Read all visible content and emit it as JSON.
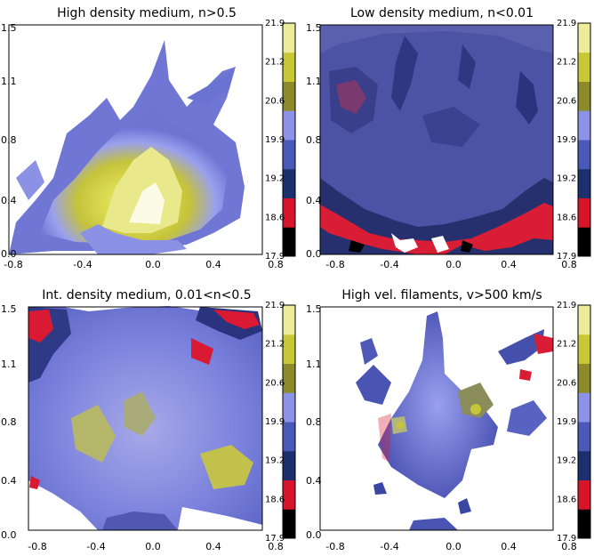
{
  "chart_data": [
    {
      "type": "heatmap",
      "title": "High density medium, n>0.5",
      "xlabel": "",
      "ylabel": "",
      "xlim": [
        -0.8,
        0.8
      ],
      "ylim": [
        0.0,
        1.5
      ],
      "x_ticks": [
        "-0.8",
        "-0.4",
        "0.0",
        "0.4",
        "0.8"
      ],
      "y_ticks": [
        "0.0",
        "0.4",
        "0.8",
        "1.1",
        "1.5"
      ],
      "colorbar": {
        "range": [
          17.9,
          21.9
        ],
        "ticks": [
          "17.9",
          "18.6",
          "19.2",
          "19.9",
          "20.6",
          "21.2",
          "21.9"
        ]
      }
    },
    {
      "type": "heatmap",
      "title": "Low density medium, n<0.01",
      "xlabel": "",
      "ylabel": "",
      "xlim": [
        -0.8,
        0.8
      ],
      "ylim": [
        0.0,
        1.5
      ],
      "x_ticks": [
        "-0.8",
        "-0.4",
        "0.0",
        "0.4",
        "0.8"
      ],
      "y_ticks": [
        "0.0",
        "0.4",
        "0.8",
        "1.1",
        "1.5"
      ],
      "colorbar": {
        "range": [
          17.9,
          21.9
        ],
        "ticks": [
          "17.9",
          "18.6",
          "19.2",
          "19.9",
          "20.6",
          "21.2",
          "21.9"
        ]
      }
    },
    {
      "type": "heatmap",
      "title": "Int. density medium, 0.01<n<0.5",
      "xlabel": "",
      "ylabel": "",
      "xlim": [
        -0.8,
        0.8
      ],
      "ylim": [
        0.0,
        1.5
      ],
      "x_ticks": [
        "-0.8",
        "-0.4",
        "0.0",
        "0.4",
        "0.8"
      ],
      "y_ticks": [
        "0.0",
        "0.4",
        "0.8",
        "1.1",
        "1.5"
      ],
      "colorbar": {
        "range": [
          17.9,
          21.9
        ],
        "ticks": [
          "17.9",
          "18.6",
          "19.2",
          "19.9",
          "20.6",
          "21.2",
          "21.9"
        ]
      }
    },
    {
      "type": "heatmap",
      "title": "High vel. filaments, v>500 km/s",
      "xlabel": "",
      "ylabel": "",
      "xlim": [
        -0.8,
        0.8
      ],
      "ylim": [
        0.0,
        1.5
      ],
      "x_ticks": [
        "-0.8",
        "-0.4",
        "0.0",
        "0.4",
        "0.8"
      ],
      "y_ticks": [
        "0.0",
        "0.4",
        "0.8",
        "1.1",
        "1.5"
      ],
      "colorbar": {
        "range": [
          17.9,
          21.9
        ],
        "ticks": [
          "17.9",
          "18.6",
          "19.2",
          "19.9",
          "20.6",
          "21.2",
          "21.9"
        ]
      }
    }
  ],
  "colors": {
    "background": "#ffffff",
    "colorbar_segments": [
      "#000000",
      "#d6142a",
      "#1c2f6e",
      "#4a59b8",
      "#8c93e6",
      "#8d8a2c",
      "#c8c736",
      "#ecec9a"
    ],
    "low_density_bg": "#4a4f9e",
    "dark_blue": "#1e2a66",
    "mid_blue": "#6a72d0",
    "light_blue": "#9aa0ee",
    "yellow": "#cccc3a",
    "pale": "#f4f4c8",
    "red": "#e01a33"
  }
}
